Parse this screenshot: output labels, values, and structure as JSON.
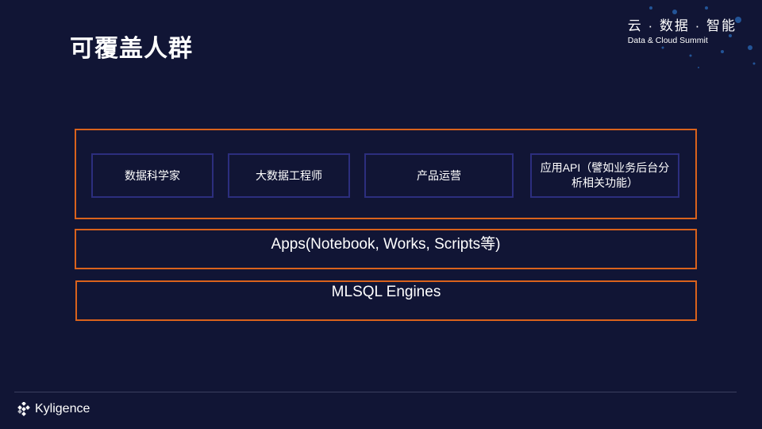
{
  "title": "可覆盖人群",
  "brand": {
    "cn": "云 · 数据 · 智能",
    "en": "Data & Cloud Summit"
  },
  "users": [
    {
      "label": "数据科学家"
    },
    {
      "label": "大数据工程师"
    },
    {
      "label": "产品运营"
    },
    {
      "label": "应用API（譬如业务后台分析相关功能）"
    }
  ],
  "layers": {
    "apps": "Apps(Notebook, Works, Scripts等)",
    "engines": "MLSQL Engines"
  },
  "footer": {
    "logo": "Kyligence"
  },
  "colors": {
    "background": "#111535",
    "accent": "#d9621c",
    "inner_border": "#2c2e7e"
  }
}
